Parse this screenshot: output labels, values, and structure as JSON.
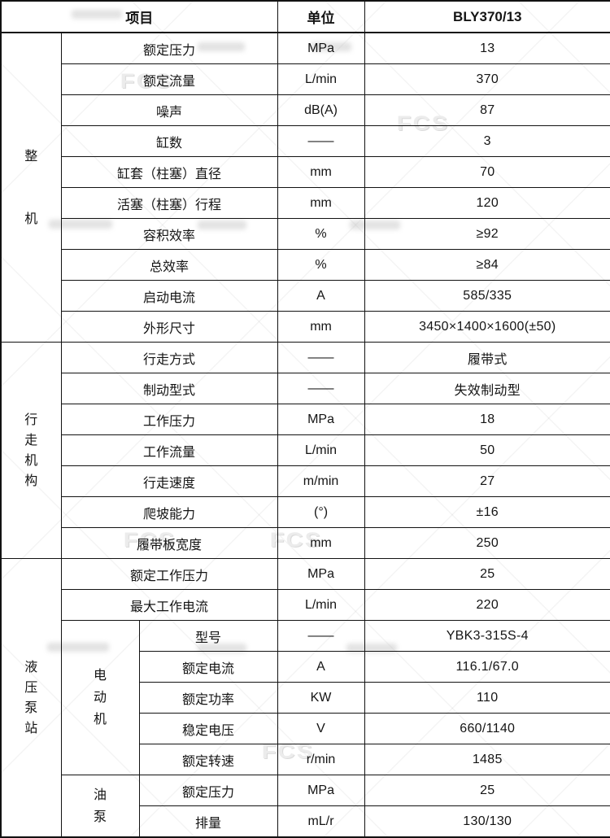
{
  "watermark": {
    "text": "FCS"
  },
  "table": {
    "header": {
      "item": "项目",
      "unit": "单位",
      "model": "BLY370/13"
    },
    "sections": [
      {
        "label": "整机",
        "rows": [
          {
            "item": "额定压力",
            "unit": "MPa",
            "value": "13"
          },
          {
            "item": "额定流量",
            "unit": "L/min",
            "value": "370"
          },
          {
            "item": "噪声",
            "unit": "dB(A)",
            "value": "87"
          },
          {
            "item": "缸数",
            "unit": "——",
            "value": "3"
          },
          {
            "item": "缸套（柱塞）直径",
            "unit": "mm",
            "value": "70"
          },
          {
            "item": "活塞（柱塞）行程",
            "unit": "mm",
            "value": "120"
          },
          {
            "item": "容积效率",
            "unit": "%",
            "value": "≥92"
          },
          {
            "item": "总效率",
            "unit": "%",
            "value": "≥84"
          },
          {
            "item": "启动电流",
            "unit": "A",
            "value": "585/335"
          },
          {
            "item": "外形尺寸",
            "unit": "mm",
            "value": "3450×1400×1600(±50)"
          }
        ]
      },
      {
        "label": "行走机构",
        "rows": [
          {
            "item": "行走方式",
            "unit": "——",
            "value": "履带式"
          },
          {
            "item": "制动型式",
            "unit": "——",
            "value": "失效制动型"
          },
          {
            "item": "工作压力",
            "unit": "MPa",
            "value": "18"
          },
          {
            "item": "工作流量",
            "unit": "L/min",
            "value": "50"
          },
          {
            "item": "行走速度",
            "unit": "m/min",
            "value": "27"
          },
          {
            "item": "爬坡能力",
            "unit": "(°)",
            "value": "±16"
          },
          {
            "item": "履带板宽度",
            "unit": "mm",
            "value": "250"
          }
        ]
      },
      {
        "label": "液压泵站",
        "rows": [
          {
            "item": "额定工作压力",
            "unit": "MPa",
            "value": "25"
          },
          {
            "item": "最大工作电流",
            "unit": "L/min",
            "value": "220"
          },
          {
            "sub": {
              "label": "电动机",
              "span": 5
            },
            "item": "型号",
            "unit": "——",
            "value": "YBK3-315S-4"
          },
          {
            "in_sub": true,
            "item": "额定电流",
            "unit": "A",
            "value": "116.1/67.0"
          },
          {
            "in_sub": true,
            "item": "额定功率",
            "unit": "KW",
            "value": "110"
          },
          {
            "in_sub": true,
            "item": "稳定电压",
            "unit": "V",
            "value": "660/1140"
          },
          {
            "in_sub": true,
            "item": "额定转速",
            "unit": "r/min",
            "value": "1485"
          },
          {
            "sub": {
              "label": "油泵",
              "span": 2
            },
            "item": "额定压力",
            "unit": "MPa",
            "value": "25"
          },
          {
            "in_sub": true,
            "item": "排量",
            "unit": "mL/r",
            "value": "130/130"
          }
        ]
      }
    ]
  }
}
